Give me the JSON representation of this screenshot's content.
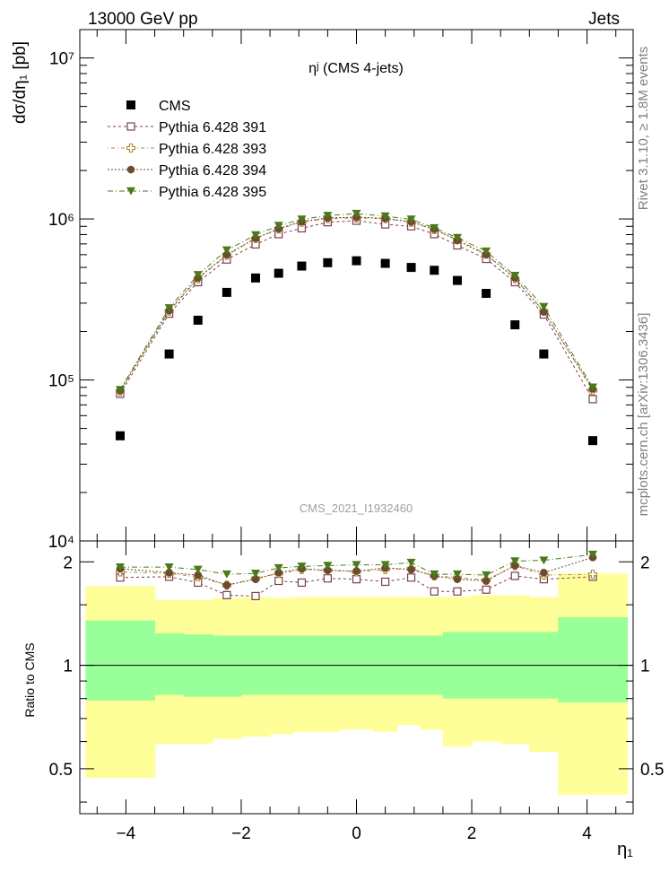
{
  "header": {
    "left": "13000 GeV pp",
    "right": "Jets"
  },
  "side_labels": {
    "rivet": "Rivet 3.1.10, ≥ 1.8M events",
    "mcplots": "mcplots.cern.ch [arXiv:1306.3436]"
  },
  "watermark": "CMS_2021_I1932460",
  "chart_data": [
    {
      "type": "scatter",
      "title": "ηʲ (CMS 4-jets)",
      "ylabel": "dσ/dη₁ [pb]",
      "xlabel": "η₁",
      "xlim": [
        -4.8,
        4.8
      ],
      "ylim": [
        10000,
        15000000
      ],
      "yscale": "log",
      "ytick_labels": [
        "10⁴",
        "10⁵",
        "10⁶",
        "10⁷"
      ],
      "legend_position": "top-left",
      "x": [
        -4.1,
        -3.25,
        -2.75,
        -2.25,
        -1.75,
        -1.35,
        -0.95,
        -0.5,
        0.0,
        0.5,
        0.95,
        1.35,
        1.75,
        2.25,
        2.75,
        3.25,
        4.1
      ],
      "series": [
        {
          "name": "CMS",
          "color": "#000000",
          "marker": "filled-square",
          "values": [
            45000,
            145000,
            235000,
            350000,
            430000,
            460000,
            510000,
            535000,
            550000,
            530000,
            500000,
            480000,
            415000,
            345000,
            220000,
            145000,
            42000
          ]
        },
        {
          "name": "Pythia 6.428 391",
          "color": "#7b3f4a",
          "marker": "open-square",
          "values": [
            82000,
            258000,
            405000,
            560000,
            695000,
            805000,
            875000,
            955000,
            975000,
            925000,
            900000,
            805000,
            685000,
            565000,
            405000,
            255000,
            76000
          ]
        },
        {
          "name": "Pythia 6.428 393",
          "color": "#b08a2e",
          "marker": "open-cross",
          "values": [
            85000,
            268000,
            425000,
            595000,
            755000,
            865000,
            955000,
            1005000,
            1015000,
            1005000,
            955000,
            860000,
            745000,
            605000,
            425000,
            268000,
            86000
          ]
        },
        {
          "name": "Pythia 6.428 394",
          "color": "#6b4b32",
          "marker": "filled-circle",
          "values": [
            86000,
            270000,
            430000,
            600000,
            760000,
            870000,
            965000,
            1015000,
            1025000,
            1010000,
            960000,
            865000,
            735000,
            600000,
            430000,
            265000,
            88000
          ]
        },
        {
          "name": "Pythia 6.428 395",
          "color": "#4a7a1a",
          "marker": "filled-triangle-down",
          "values": [
            87000,
            280000,
            450000,
            640000,
            795000,
            910000,
            995000,
            1050000,
            1080000,
            1040000,
            995000,
            880000,
            765000,
            630000,
            445000,
            285000,
            90000
          ]
        }
      ]
    },
    {
      "type": "scatter",
      "ylabel": "Ratio to CMS",
      "xlabel": "η₁",
      "xlim": [
        -4.8,
        4.8
      ],
      "ylim": [
        0.37,
        2.3
      ],
      "yscale": "log",
      "x_ticks": [
        -4,
        -2,
        0,
        2,
        4
      ],
      "x_tick_labels": [
        "−4",
        "−2",
        "0",
        "2",
        "4"
      ],
      "y_ticks": [
        0.5,
        1,
        2
      ],
      "y_tick_labels": [
        "0.5",
        "1",
        "2"
      ],
      "reference_line": 1,
      "bands": {
        "edges": [
          -4.7,
          -3.5,
          -3.0,
          -2.5,
          -2.0,
          -1.5,
          -1.1,
          -0.7,
          -0.3,
          0.3,
          0.7,
          1.1,
          1.5,
          2.0,
          2.5,
          3.0,
          3.5,
          4.7
        ],
        "green_low": [
          0.79,
          0.82,
          0.81,
          0.81,
          0.82,
          0.82,
          0.82,
          0.82,
          0.82,
          0.82,
          0.82,
          0.82,
          0.8,
          0.8,
          0.8,
          0.8,
          0.78
        ],
        "green_high": [
          1.35,
          1.24,
          1.23,
          1.22,
          1.22,
          1.22,
          1.22,
          1.22,
          1.22,
          1.22,
          1.22,
          1.22,
          1.25,
          1.25,
          1.25,
          1.25,
          1.38
        ],
        "yellow_low": [
          0.47,
          0.59,
          0.59,
          0.61,
          0.62,
          0.63,
          0.64,
          0.64,
          0.65,
          0.64,
          0.67,
          0.65,
          0.58,
          0.6,
          0.59,
          0.56,
          0.42
        ],
        "yellow_high": [
          1.7,
          1.55,
          1.55,
          1.57,
          1.58,
          1.57,
          1.58,
          1.58,
          1.58,
          1.58,
          1.58,
          1.58,
          1.58,
          1.6,
          1.6,
          1.58,
          1.85
        ]
      },
      "series": [
        {
          "name": "Pythia 6.428 391",
          "color": "#7b3f4a",
          "marker": "open-square",
          "values": [
            1.8,
            1.81,
            1.74,
            1.6,
            1.59,
            1.76,
            1.74,
            1.79,
            1.78,
            1.75,
            1.8,
            1.64,
            1.64,
            1.66,
            1.82,
            1.78,
            1.81
          ]
        },
        {
          "name": "Pythia 6.428 393",
          "color": "#b08a2e",
          "marker": "open-cross",
          "values": [
            1.87,
            1.85,
            1.81,
            1.71,
            1.79,
            1.85,
            1.9,
            1.89,
            1.87,
            1.9,
            1.91,
            1.82,
            1.8,
            1.77,
            1.95,
            1.83,
            1.84
          ]
        },
        {
          "name": "Pythia 6.428 394",
          "color": "#6b4b32",
          "marker": "filled-circle",
          "values": [
            1.91,
            1.86,
            1.83,
            1.71,
            1.78,
            1.86,
            1.91,
            1.89,
            1.88,
            1.92,
            1.9,
            1.82,
            1.78,
            1.76,
            1.95,
            1.86,
            2.06
          ]
        },
        {
          "name": "Pythia 6.428 395",
          "color": "#4a7a1a",
          "marker": "filled-triangle-down",
          "values": [
            1.93,
            1.93,
            1.9,
            1.84,
            1.85,
            1.92,
            1.94,
            1.95,
            1.96,
            1.96,
            1.99,
            1.84,
            1.84,
            1.83,
            2.01,
            2.02,
            2.1
          ]
        }
      ]
    }
  ]
}
